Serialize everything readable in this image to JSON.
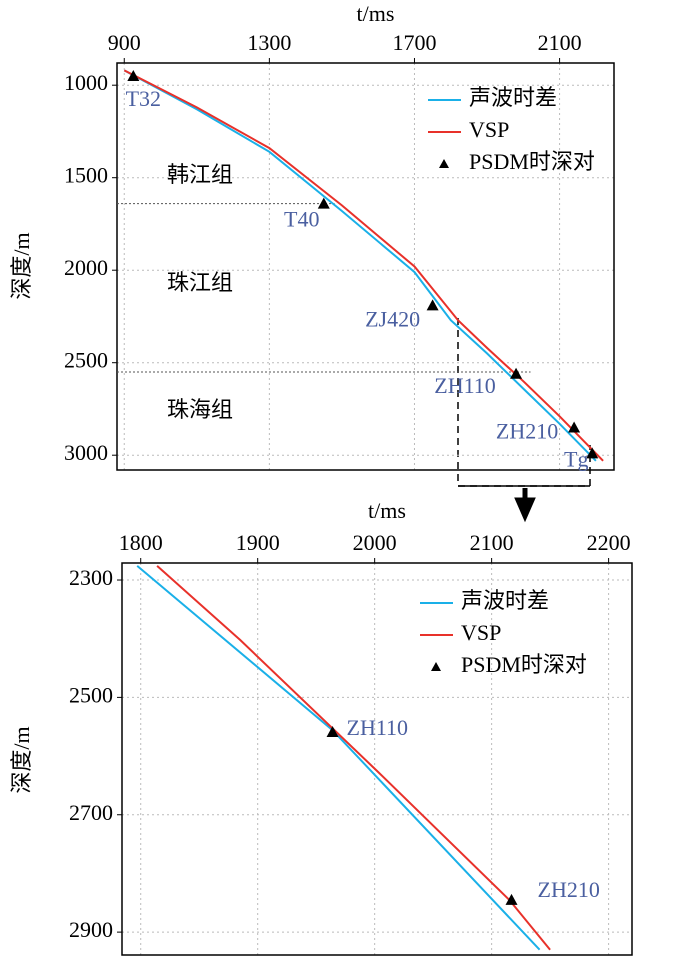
{
  "chart_data": [
    {
      "type": "line",
      "x_label": "t/ms",
      "y_label": "深度/m",
      "x_axis_position": "top",
      "y_inverted": true,
      "xlim": [
        880,
        2250
      ],
      "xticks": [
        900,
        1300,
        1700,
        2100
      ],
      "ylim": [
        880,
        3080
      ],
      "yticks": [
        1000,
        1500,
        2000,
        2500,
        3000
      ],
      "grid": true,
      "legend": "upper right",
      "series": [
        {
          "name": "声波时差",
          "color": "#1ab0e8",
          "x": [
            900,
            1100,
            1300,
            1500,
            1700,
            1800,
            1900,
            2000,
            2100,
            2200
          ],
          "values": [
            920,
            1130,
            1360,
            1680,
            2010,
            2270,
            2450,
            2640,
            2830,
            3030
          ]
        },
        {
          "name": "VSP",
          "color": "#e8312a",
          "x": [
            900,
            1100,
            1300,
            1500,
            1700,
            1820,
            1900,
            2000,
            2100,
            2220
          ],
          "values": [
            920,
            1120,
            1340,
            1650,
            1980,
            2270,
            2420,
            2600,
            2790,
            3030
          ]
        },
        {
          "name": "PSDM时深对",
          "color": "#000000",
          "marker": "triangle",
          "x": [
            925,
            1450,
            1750,
            1980,
            2140,
            2190
          ],
          "values": [
            950,
            1640,
            2190,
            2560,
            2850,
            2990
          ],
          "labels": [
            "T32",
            "T40",
            "ZJ420",
            "ZH110",
            "ZH210",
            "Tg"
          ]
        }
      ],
      "formations": [
        "韩江组",
        "珠江组",
        "珠海组"
      ],
      "boundaries": [
        1640,
        2550
      ]
    },
    {
      "type": "line",
      "x_label": "t/ms",
      "y_label": "深度/m",
      "x_axis_position": "top",
      "y_inverted": true,
      "xlim": [
        1784,
        2220
      ],
      "xticks": [
        1800,
        1900,
        2000,
        2100,
        2200
      ],
      "ylim": [
        2271,
        2939
      ],
      "yticks": [
        2300,
        2500,
        2700,
        2900
      ],
      "grid": true,
      "legend": "upper right",
      "series": [
        {
          "name": "声波时差",
          "color": "#1ab0e8",
          "x": [
            1797,
            1964,
            2000,
            2141
          ],
          "values": [
            2276,
            2556,
            2632,
            2930
          ]
        },
        {
          "name": "VSP",
          "color": "#e8312a",
          "x": [
            1814,
            1885,
            2004,
            2115,
            2150
          ],
          "values": [
            2276,
            2402,
            2629,
            2845,
            2930
          ]
        },
        {
          "name": "PSDM时深对",
          "color": "#000000",
          "marker": "triangle",
          "x": [
            1964,
            2117
          ],
          "values": [
            2559,
            2845
          ],
          "labels": [
            "ZH110",
            "ZH210"
          ]
        }
      ]
    }
  ]
}
